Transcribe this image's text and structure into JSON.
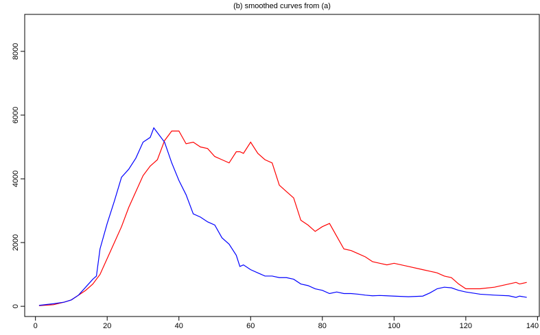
{
  "chart_data": {
    "type": "line",
    "title": "(b) smoothed curves from (a)",
    "x": [
      1,
      5,
      8,
      10,
      12,
      14,
      16,
      17,
      18,
      20,
      22,
      24,
      26,
      28,
      30,
      32,
      33,
      34,
      36,
      38,
      40,
      42,
      44,
      46,
      48,
      50,
      52,
      54,
      56,
      57,
      58,
      60,
      62,
      64,
      66,
      68,
      70,
      72,
      74,
      76,
      78,
      80,
      82,
      84,
      86,
      88,
      90,
      92,
      94,
      96,
      98,
      100,
      104,
      108,
      110,
      112,
      114,
      116,
      118,
      120,
      124,
      128,
      132,
      134,
      135,
      137
    ],
    "series": [
      {
        "color": "#ff0000",
        "values": [
          20,
          50,
          130,
          200,
          350,
          500,
          700,
          850,
          1000,
          1500,
          2000,
          2500,
          3100,
          3600,
          4100,
          4400,
          4500,
          4600,
          5200,
          5500,
          5500,
          5100,
          5150,
          5000,
          4950,
          4700,
          4600,
          4500,
          4850,
          4850,
          4800,
          5150,
          4800,
          4600,
          4500,
          3800,
          3600,
          3400,
          2700,
          2550,
          2350,
          2500,
          2600,
          2200,
          1800,
          1750,
          1650,
          1550,
          1400,
          1350,
          1300,
          1350,
          1250,
          1150,
          1100,
          1050,
          950,
          900,
          700,
          550,
          550,
          600,
          700,
          750,
          700,
          750
        ]
      },
      {
        "color": "#0000ff",
        "values": [
          30,
          80,
          130,
          200,
          350,
          600,
          850,
          950,
          1800,
          2600,
          3300,
          4050,
          4300,
          4650,
          5150,
          5300,
          5600,
          5450,
          5150,
          4500,
          3950,
          3500,
          2900,
          2800,
          2650,
          2550,
          2150,
          1950,
          1600,
          1250,
          1300,
          1150,
          1050,
          950,
          950,
          900,
          900,
          850,
          700,
          650,
          550,
          500,
          400,
          450,
          400,
          400,
          380,
          350,
          330,
          340,
          330,
          320,
          300,
          320,
          420,
          550,
          600,
          580,
          500,
          450,
          380,
          350,
          330,
          280,
          320,
          280
        ]
      }
    ],
    "xlim": [
      -3,
      140.5
    ],
    "ylim": [
      -320,
      9160
    ],
    "xticks": [
      0,
      20,
      40,
      60,
      80,
      100,
      120,
      140
    ],
    "yticks": [
      0,
      2000,
      4000,
      6000,
      8000
    ]
  }
}
